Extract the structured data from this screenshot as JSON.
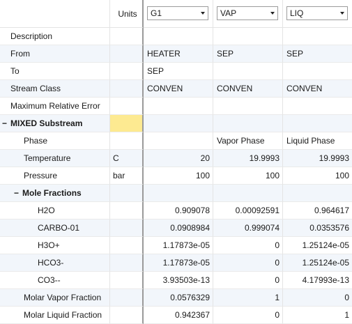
{
  "header": {
    "units_label": "Units",
    "streams": [
      {
        "name": "G1"
      },
      {
        "name": "VAP"
      },
      {
        "name": "LIQ"
      }
    ]
  },
  "rows": {
    "description": {
      "label": "Description"
    },
    "from": {
      "label": "From",
      "values": [
        "HEATER",
        "SEP",
        "SEP"
      ]
    },
    "to": {
      "label": "To",
      "values": [
        "SEP",
        "",
        ""
      ]
    },
    "stream_class": {
      "label": "Stream Class",
      "values": [
        "CONVEN",
        "CONVEN",
        "CONVEN"
      ]
    },
    "max_rel_error": {
      "label": "Maximum Relative Error"
    },
    "mixed_substream": {
      "label": "MIXED Substream",
      "toggle": "−"
    },
    "phase": {
      "label": "Phase",
      "values": [
        "",
        "Vapor Phase",
        "Liquid Phase"
      ]
    },
    "temperature": {
      "label": "Temperature",
      "unit": "C",
      "values": [
        "20",
        "19.9993",
        "19.9993"
      ]
    },
    "pressure": {
      "label": "Pressure",
      "unit": "bar",
      "values": [
        "100",
        "100",
        "100"
      ]
    },
    "mole_fractions": {
      "label": "Mole Fractions",
      "toggle": "−"
    },
    "h2o": {
      "label": "H2O",
      "values": [
        "0.909078",
        "0.00092591",
        "0.964617"
      ]
    },
    "carbo01": {
      "label": "CARBO-01",
      "values": [
        "0.0908984",
        "0.999074",
        "0.0353576"
      ]
    },
    "h3o": {
      "label": "H3O+",
      "values": [
        "1.17873e-05",
        "0",
        "1.25124e-05"
      ]
    },
    "hco3": {
      "label": "HCO3-",
      "values": [
        "1.17873e-05",
        "0",
        "1.25124e-05"
      ]
    },
    "co3": {
      "label": "CO3--",
      "values": [
        "3.93503e-13",
        "0",
        "4.17993e-13"
      ]
    },
    "molar_vapor_fraction": {
      "label": "Molar Vapor Fraction",
      "values": [
        "0.0576329",
        "1",
        "0"
      ]
    },
    "molar_liquid_fraction": {
      "label": "Molar Liquid Fraction",
      "values": [
        "0.942367",
        "0",
        "1"
      ]
    }
  },
  "colors": {
    "highlight": "#fdea91",
    "alt_row": "#f2f6fb"
  }
}
